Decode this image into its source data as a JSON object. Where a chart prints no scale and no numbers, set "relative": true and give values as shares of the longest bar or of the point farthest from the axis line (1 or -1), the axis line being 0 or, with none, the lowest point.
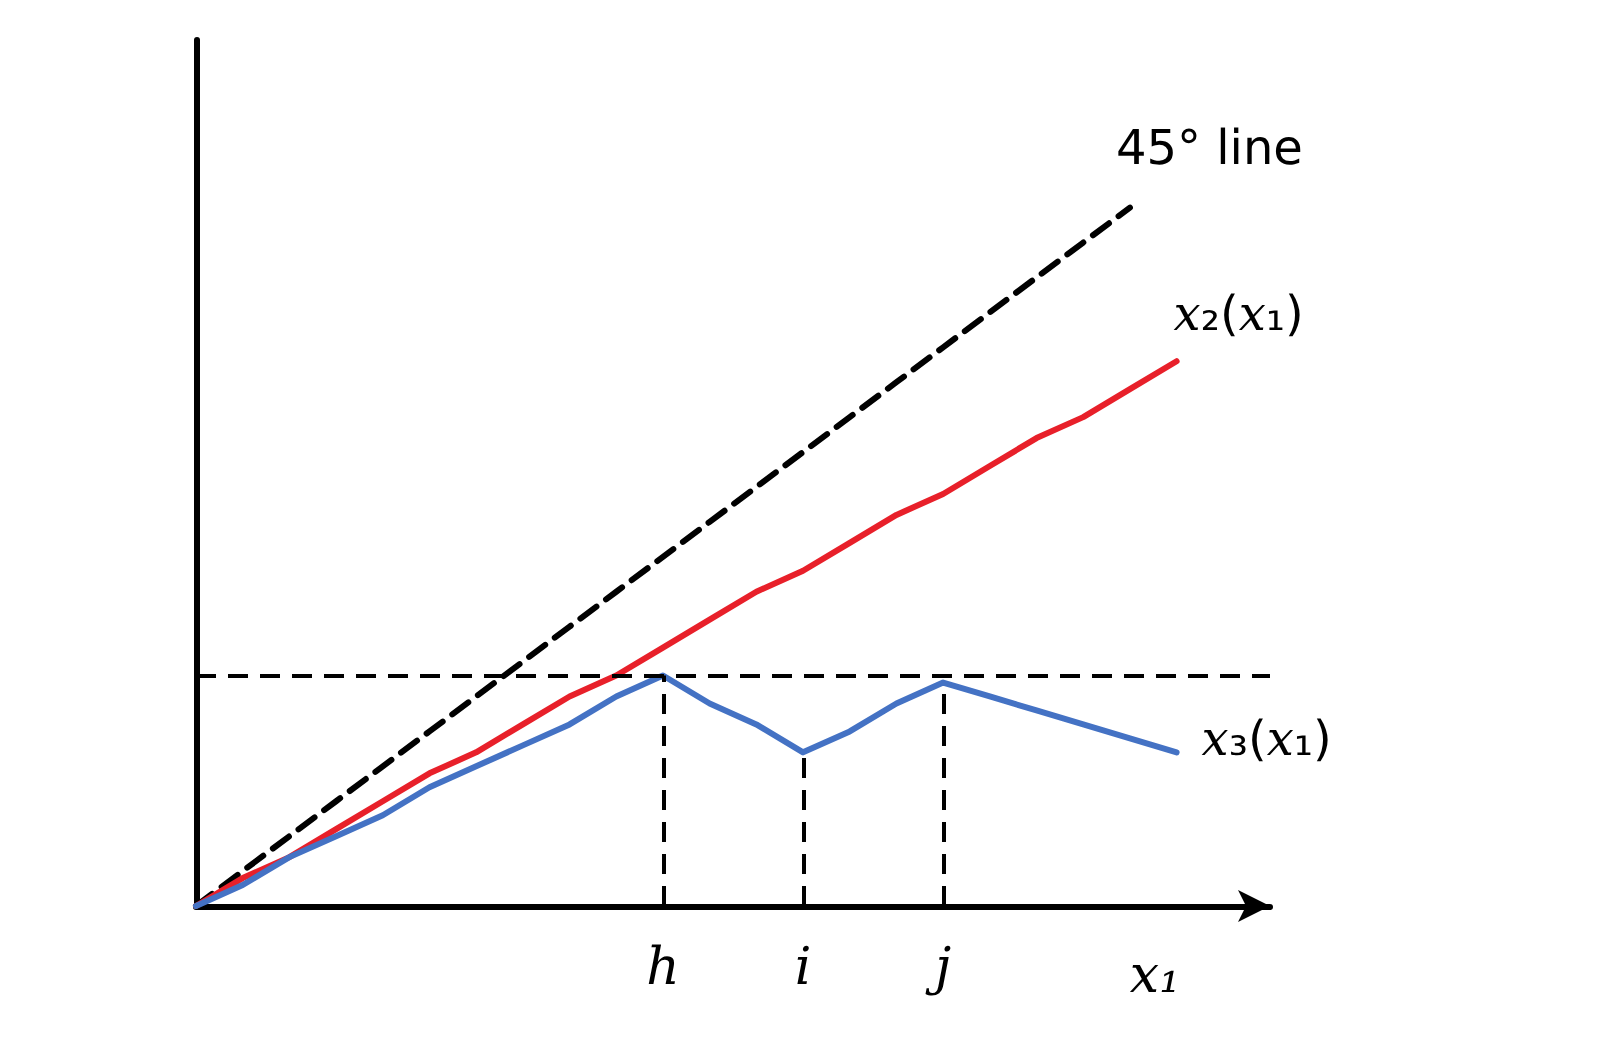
{
  "chart_data": {
    "type": "line",
    "relative": true,
    "xlabel": "x₁",
    "marker": "none",
    "grid": false,
    "legend": false,
    "categories": [
      null,
      null,
      null,
      null,
      null,
      null,
      null,
      null,
      null,
      null,
      "h",
      null,
      null,
      "i",
      null,
      null,
      "j",
      null,
      null,
      null,
      null,
      null,
      null,
      null
    ],
    "series": [
      {
        "name": "45° line",
        "color": "#000000",
        "line_style": "dashed",
        "values": [
          0,
          0.05,
          0.1,
          0.15,
          0.2,
          0.25,
          0.3,
          0.35,
          0.4,
          0.45,
          0.5,
          0.55,
          0.6,
          0.65,
          0.7,
          0.75,
          0.8,
          0.85,
          0.9,
          0.95,
          1,
          null,
          null,
          null
        ]
      },
      {
        "name": "x₂(x₁)",
        "color": "#e8202a",
        "line_style": "solid",
        "values": [
          0,
          0.04,
          0.07,
          0.11,
          0.15,
          0.19,
          0.22,
          0.26,
          0.3,
          0.33,
          0.37,
          0.41,
          0.45,
          0.48,
          0.52,
          0.56,
          0.59,
          0.63,
          0.67,
          0.7,
          0.74,
          0.78,
          null,
          null
        ]
      },
      {
        "name": "x₃(x₁)",
        "color": "#4472c4",
        "line_style": "solid",
        "values": [
          0,
          0.03,
          0.07,
          0.1,
          0.13,
          0.17,
          0.2,
          0.23,
          0.26,
          0.3,
          0.33,
          0.29,
          0.26,
          0.22,
          0.25,
          0.29,
          0.32,
          0.3,
          0.28,
          0.26,
          0.24,
          0.22,
          null,
          null
        ]
      }
    ],
    "ref_lines": [
      {
        "axis": "y",
        "value": 0.33,
        "color": "#000000",
        "line_style": "dashed"
      },
      {
        "axis": "x",
        "value": "h",
        "color": "#000000",
        "line_style": "dashed"
      },
      {
        "axis": "x",
        "value": "i",
        "color": "#000000",
        "line_style": "dashed"
      },
      {
        "axis": "x",
        "value": "j",
        "color": "#000000",
        "line_style": "dashed"
      }
    ]
  }
}
